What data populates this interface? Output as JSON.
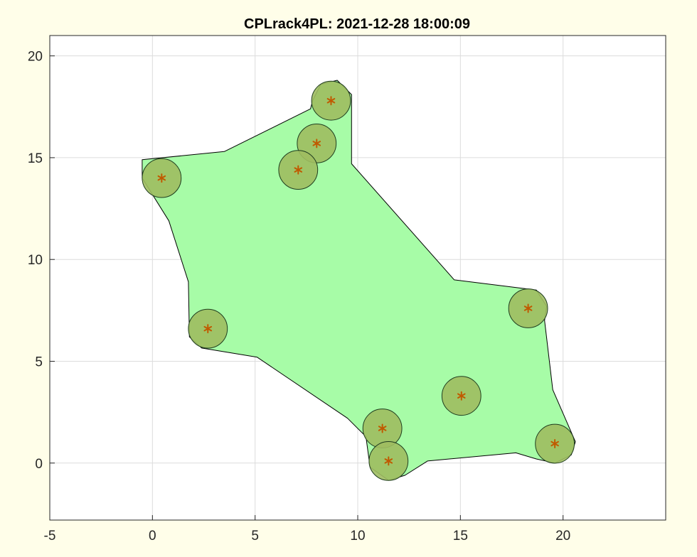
{
  "chart_data": {
    "type": "scatter",
    "title": "CPLrack4PL: 2021-12-28 18:00:09",
    "xlabel": "",
    "ylabel": "",
    "xlim": [
      -5,
      25
    ],
    "ylim": [
      -2.8,
      21
    ],
    "x_ticks": [
      -5,
      0,
      5,
      10,
      15,
      20
    ],
    "y_ticks": [
      0,
      5,
      10,
      15,
      20
    ],
    "grid": true,
    "legend": "none",
    "colors": {
      "background": "#fffee9",
      "axes_background": "#ffffff",
      "region_fill": "#a7fca7",
      "circle_fill": "#9fbd61",
      "marker": "#c05a00",
      "grid": "#dcdcdc"
    },
    "circle_radius": 0.95,
    "points": [
      {
        "x": 8.7,
        "y": 17.8
      },
      {
        "x": 8.0,
        "y": 15.7
      },
      {
        "x": 7.1,
        "y": 14.4
      },
      {
        "x": 0.45,
        "y": 14.0
      },
      {
        "x": 2.7,
        "y": 6.6
      },
      {
        "x": 18.3,
        "y": 7.6
      },
      {
        "x": 15.05,
        "y": 3.3
      },
      {
        "x": 11.2,
        "y": 1.7
      },
      {
        "x": 11.5,
        "y": 0.1
      },
      {
        "x": 19.6,
        "y": 0.95
      }
    ],
    "region": [
      [
        -0.5,
        14.9
      ],
      [
        3.5,
        15.3
      ],
      [
        7.7,
        17.4
      ],
      [
        7.8,
        17.8
      ],
      [
        8.2,
        18.6
      ],
      [
        9.0,
        18.8
      ],
      [
        9.7,
        18.1
      ],
      [
        9.7,
        14.7
      ],
      [
        14.7,
        9.0
      ],
      [
        18.7,
        8.5
      ],
      [
        19.2,
        7.7
      ],
      [
        19.1,
        7.0
      ],
      [
        19.5,
        3.6
      ],
      [
        20.6,
        1.05
      ],
      [
        20.4,
        0.4
      ],
      [
        19.6,
        0.0
      ],
      [
        18.7,
        0.2
      ],
      [
        17.7,
        0.5
      ],
      [
        13.4,
        0.1
      ],
      [
        12.3,
        -0.6
      ],
      [
        11.5,
        -0.85
      ],
      [
        10.6,
        -0.2
      ],
      [
        10.4,
        1.3
      ],
      [
        9.5,
        2.2
      ],
      [
        5.1,
        5.2
      ],
      [
        2.4,
        5.65
      ],
      [
        1.8,
        6.2
      ],
      [
        1.75,
        8.9
      ],
      [
        0.8,
        11.9
      ],
      [
        -0.5,
        14.0
      ]
    ]
  }
}
